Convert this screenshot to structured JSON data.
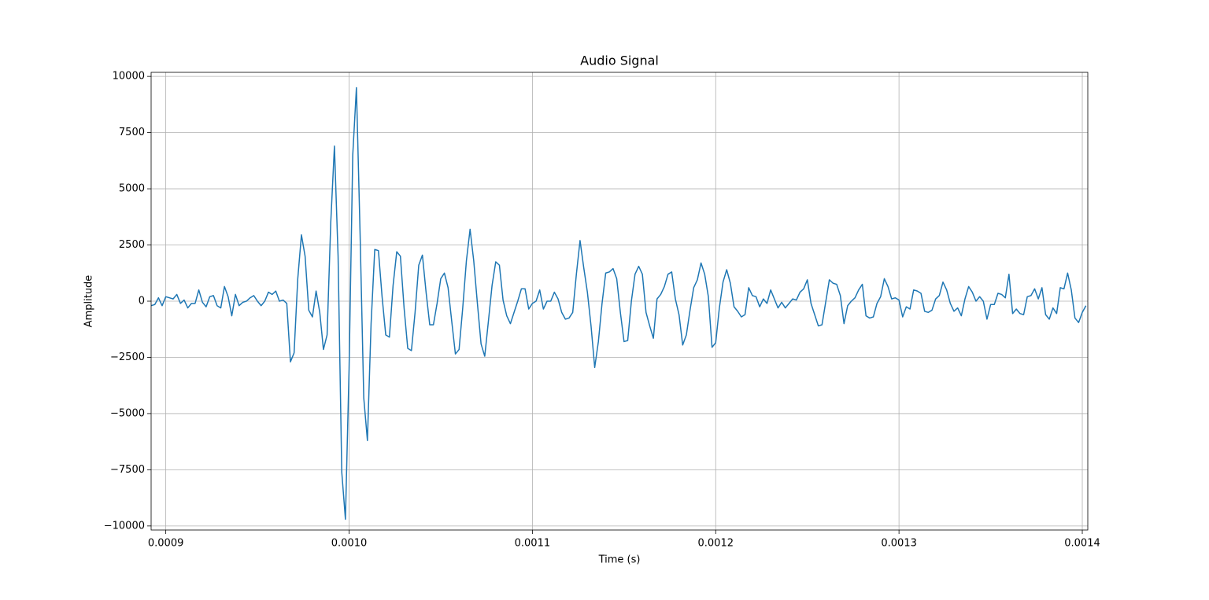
{
  "chart_data": {
    "type": "line",
    "title": "Audio Signal",
    "xlabel": "Time (s)",
    "ylabel": "Amplitude",
    "xlim": [
      0.000892,
      0.001403
    ],
    "ylim": [
      -10180,
      10180
    ],
    "xticks": [
      0.0009,
      {
        "value": 0.001,
        "label": "0.0010"
      },
      0.0011,
      0.0012,
      0.0013,
      0.0014
    ],
    "yticks": [
      {
        "value": -10000,
        "label": "−10000"
      },
      {
        "value": -7500,
        "label": "−7500"
      },
      {
        "value": -5000,
        "label": "−5000"
      },
      {
        "value": -2500,
        "label": "−2500"
      },
      0,
      2500,
      5000,
      7500,
      10000
    ],
    "grid": true,
    "x": [
      0.000892,
      0.000894,
      0.000896,
      0.000898,
      0.0009,
      0.000902,
      0.000904,
      0.000906,
      0.000908,
      0.00091,
      0.000912,
      0.000914,
      0.000916,
      0.000918,
      0.00092,
      0.000922,
      0.000924,
      0.000926,
      0.000928,
      0.00093,
      0.000932,
      0.000934,
      0.000936,
      0.000938,
      0.00094,
      0.000942,
      0.000944,
      0.000946,
      0.000948,
      0.00095,
      0.000952,
      0.000954,
      0.000956,
      0.000958,
      0.00096,
      0.000962,
      0.000964,
      0.000966,
      0.000968,
      0.00097,
      0.000972,
      0.000974,
      0.000976,
      0.000978,
      0.00098,
      0.000982,
      0.000984,
      0.000986,
      0.000988,
      0.00099,
      0.000992,
      0.000994,
      0.000996,
      0.000998,
      0.001,
      0.001002,
      0.001004,
      0.001006,
      0.001008,
      0.00101,
      0.001012,
      0.001014,
      0.001016,
      0.001018,
      0.00102,
      0.001022,
      0.001024,
      0.001026,
      0.001028,
      0.00103,
      0.001032,
      0.001034,
      0.001036,
      0.001038,
      0.00104,
      0.001042,
      0.001044,
      0.001046,
      0.001048,
      0.00105,
      0.001052,
      0.001054,
      0.001056,
      0.001058,
      0.00106,
      0.001062,
      0.001064,
      0.001066,
      0.001068,
      0.00107,
      0.001072,
      0.001074,
      0.001076,
      0.001078,
      0.00108,
      0.001082,
      0.001084,
      0.001086,
      0.001088,
      0.00109,
      0.001092,
      0.001094,
      0.001096,
      0.001098,
      0.0011,
      0.001102,
      0.001104,
      0.001106,
      0.001108,
      0.00111,
      0.001112,
      0.001114,
      0.001116,
      0.001118,
      0.00112,
      0.001122,
      0.001124,
      0.001126,
      0.001128,
      0.00113,
      0.001132,
      0.001134,
      0.001136,
      0.001138,
      0.00114,
      0.001142,
      0.001144,
      0.001146,
      0.001148,
      0.00115,
      0.001152,
      0.001154,
      0.001156,
      0.001158,
      0.00116,
      0.001162,
      0.001164,
      0.001166,
      0.001168,
      0.00117,
      0.001172,
      0.001174,
      0.001176,
      0.001178,
      0.00118,
      0.001182,
      0.001184,
      0.001186,
      0.001188,
      0.00119,
      0.001192,
      0.001194,
      0.001196,
      0.001198,
      0.0012,
      0.001202,
      0.001204,
      0.001206,
      0.001208,
      0.00121,
      0.001212,
      0.001214,
      0.001216,
      0.001218,
      0.00122,
      0.001222,
      0.001224,
      0.001226,
      0.001228,
      0.00123,
      0.001232,
      0.001234,
      0.001236,
      0.001238,
      0.00124,
      0.001242,
      0.001244,
      0.001246,
      0.001248,
      0.00125,
      0.001252,
      0.001254,
      0.001256,
      0.001258,
      0.00126,
      0.001262,
      0.001264,
      0.001266,
      0.001268,
      0.00127,
      0.001272,
      0.001274,
      0.001276,
      0.001278,
      0.00128,
      0.001282,
      0.001284,
      0.001286,
      0.001288,
      0.00129,
      0.001292,
      0.001294,
      0.001296,
      0.001298,
      0.0013,
      0.001302,
      0.001304,
      0.001306,
      0.001308,
      0.00131,
      0.001312,
      0.001314,
      0.001316,
      0.001318,
      0.00132,
      0.001322,
      0.001324,
      0.001326,
      0.001328,
      0.00133,
      0.001332,
      0.001334,
      0.001336,
      0.001338,
      0.00134,
      0.001342,
      0.001344,
      0.001346,
      0.001348,
      0.00135,
      0.001352,
      0.001354,
      0.001356,
      0.001358,
      0.00136,
      0.001362,
      0.001364,
      0.001366,
      0.001368,
      0.00137,
      0.001372,
      0.001374,
      0.001376,
      0.001378,
      0.00138,
      0.001382,
      0.001384,
      0.001386,
      0.001388,
      0.00139,
      0.001392,
      0.001394,
      0.001396,
      0.001398,
      0.0014,
      0.001402
    ],
    "series": [
      {
        "color": "#1f77b4",
        "values": [
          -200,
          -150,
          150,
          -200,
          200,
          150,
          100,
          300,
          -100,
          50,
          -300,
          -100,
          -100,
          500,
          -50,
          -250,
          200,
          250,
          -200,
          -300,
          650,
          200,
          -650,
          300,
          -200,
          -50,
          0,
          150,
          250,
          0,
          -200,
          0,
          400,
          300,
          450,
          0,
          50,
          -100,
          -2700,
          -2300,
          1000,
          2950,
          2000,
          -400,
          -700,
          450,
          -500,
          -2150,
          -1500,
          3500,
          6900,
          2000,
          -7600,
          -9700,
          -3000,
          6500,
          9500,
          3000,
          -4300,
          -6200,
          -1000,
          2300,
          2250,
          200,
          -1500,
          -1600,
          700,
          2200,
          2000,
          -300,
          -2100,
          -2200,
          -500,
          1600,
          2050,
          400,
          -1050,
          -1050,
          -100,
          1000,
          1250,
          600,
          -900,
          -2350,
          -2150,
          -300,
          1800,
          3200,
          1800,
          -100,
          -1900,
          -2450,
          -900,
          700,
          1750,
          1600,
          50,
          -650,
          -1000,
          -500,
          0,
          550,
          550,
          -350,
          -100,
          0,
          500,
          -350,
          0,
          0,
          400,
          100,
          -500,
          -800,
          -750,
          -500,
          1200,
          2700,
          1500,
          400,
          -1100,
          -2950,
          -1800,
          -100,
          1250,
          1300,
          1450,
          1000,
          -500,
          -1800,
          -1750,
          0,
          1200,
          1550,
          1200,
          -500,
          -1100,
          -1650,
          100,
          300,
          650,
          1200,
          1300,
          100,
          -600,
          -1950,
          -1500,
          -400,
          600,
          950,
          1700,
          1200,
          200,
          -2050,
          -1850,
          -300,
          850,
          1400,
          800,
          -250,
          -450,
          -700,
          -600,
          600,
          250,
          200,
          -250,
          100,
          -100,
          500,
          100,
          -300,
          -50,
          -300,
          -100,
          100,
          50,
          400,
          550,
          950,
          -100,
          -600,
          -1100,
          -1050,
          -50,
          950,
          800,
          750,
          250,
          -1000,
          -200,
          0,
          150,
          500,
          750,
          -650,
          -750,
          -700,
          -100,
          200,
          1000,
          650,
          100,
          150,
          50,
          -700,
          -250,
          -350,
          500,
          450,
          350,
          -450,
          -500,
          -400,
          100,
          250,
          850,
          500,
          -100,
          -450,
          -300,
          -650,
          100,
          650,
          400,
          0,
          200,
          0,
          -800,
          -150,
          -150,
          350,
          300,
          150,
          1200,
          -550,
          -350,
          -550,
          -600,
          200,
          250,
          550,
          100,
          600,
          -600,
          -800,
          -300,
          -550,
          600,
          550,
          1250,
          500,
          -750,
          -950,
          -500,
          -200
        ]
      }
    ]
  }
}
